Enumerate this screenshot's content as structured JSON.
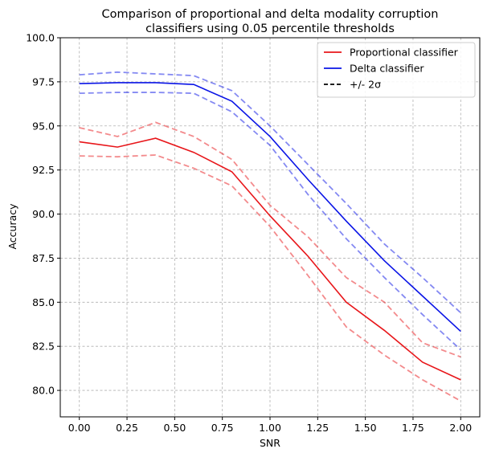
{
  "chart_data": {
    "type": "line",
    "title_lines": [
      "Comparison of proportional and delta modality corruption",
      "classifiers using 0.05 percentile thresholds"
    ],
    "xlabel": "SNR",
    "ylabel": "Accuracy",
    "xlim": [
      -0.1,
      2.1
    ],
    "ylim": [
      78.5,
      100.0
    ],
    "xticks": [
      0.0,
      0.25,
      0.5,
      0.75,
      1.0,
      1.25,
      1.5,
      1.75,
      2.0
    ],
    "xtick_labels": [
      "0.00",
      "0.25",
      "0.50",
      "0.75",
      "1.00",
      "1.25",
      "1.50",
      "1.75",
      "2.00"
    ],
    "yticks": [
      80.0,
      82.5,
      85.0,
      87.5,
      90.0,
      92.5,
      95.0,
      97.5,
      100.0
    ],
    "ytick_labels": [
      "80.0",
      "82.5",
      "85.0",
      "87.5",
      "90.0",
      "92.5",
      "95.0",
      "97.5",
      "100.0"
    ],
    "grid": true,
    "legend_position": "top-right",
    "x": [
      0.0,
      0.2,
      0.4,
      0.6,
      0.8,
      1.0,
      1.2,
      1.4,
      1.6,
      1.8,
      2.0
    ],
    "series": [
      {
        "name": "Proportional classifier",
        "color": "#e8161a",
        "values": [
          94.1,
          93.8,
          94.3,
          93.5,
          92.4,
          89.9,
          87.6,
          85.0,
          83.4,
          81.6,
          80.6
        ],
        "upper": [
          94.9,
          94.4,
          95.2,
          94.4,
          93.1,
          90.5,
          88.7,
          86.4,
          85.0,
          82.7,
          81.9
        ],
        "lower": [
          93.3,
          93.25,
          93.35,
          92.6,
          91.6,
          89.3,
          86.5,
          83.6,
          82.0,
          80.6,
          79.4
        ]
      },
      {
        "name": "Delta classifier",
        "color": "#0a14e6",
        "values": [
          97.4,
          97.45,
          97.45,
          97.35,
          96.4,
          94.4,
          91.95,
          89.6,
          87.35,
          85.35,
          83.35
        ],
        "upper": [
          97.9,
          98.05,
          97.95,
          97.85,
          97.0,
          95.0,
          92.8,
          90.6,
          88.3,
          86.4,
          84.4
        ],
        "lower": [
          96.85,
          96.9,
          96.9,
          96.85,
          95.8,
          93.9,
          91.1,
          88.6,
          86.4,
          84.3,
          82.3
        ]
      }
    ],
    "legend": [
      {
        "label": "Proportional classifier",
        "color": "#e8161a",
        "style": "solid"
      },
      {
        "label": "Delta classifier",
        "color": "#0a14e6",
        "style": "solid"
      },
      {
        "label": "+/- 2σ",
        "color": "#000000",
        "style": "dashed"
      }
    ]
  }
}
